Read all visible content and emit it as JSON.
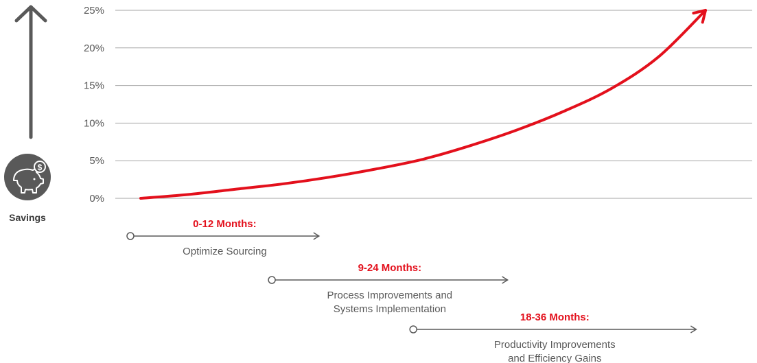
{
  "chart_data": {
    "type": "line",
    "ylabel": "Savings",
    "ylim": [
      0,
      25
    ],
    "y_ticks": [
      "0%",
      "5%",
      "10%",
      "15%",
      "20%",
      "25%"
    ],
    "y_tick_values": [
      0,
      5,
      10,
      15,
      20,
      25
    ],
    "grid": true,
    "series": [
      {
        "color": "#e3101c",
        "x": [
          0,
          3,
          6,
          9,
          12,
          15,
          18,
          21,
          24,
          27,
          30,
          33,
          36
        ],
        "values": [
          0,
          0.5,
          1.2,
          1.9,
          2.8,
          3.9,
          5.2,
          7,
          9.1,
          11.6,
          14.6,
          18.8,
          25
        ]
      }
    ],
    "phases": [
      {
        "label": "0-12 Months:",
        "description": [
          "Optimize Sourcing"
        ],
        "start_month": 0,
        "end_month": 12
      },
      {
        "label": "9-24 Months:",
        "description": [
          "Process Improvements and",
          "Systems Implementation"
        ],
        "start_month": 9,
        "end_month": 24
      },
      {
        "label": "18-36 Months:",
        "description": [
          "Productivity Improvements",
          "and Efficiency Gains"
        ],
        "start_month": 18,
        "end_month": 36
      }
    ]
  },
  "icons": {
    "savings_icon": "piggy-bank-dollar-icon",
    "axis_arrow": "up-arrow-icon"
  },
  "colors": {
    "accent": "#e3101c",
    "axis_gray": "#595959",
    "grid": "#a6a6a6",
    "icon_bg": "#595959"
  },
  "savings_label": "Savings"
}
